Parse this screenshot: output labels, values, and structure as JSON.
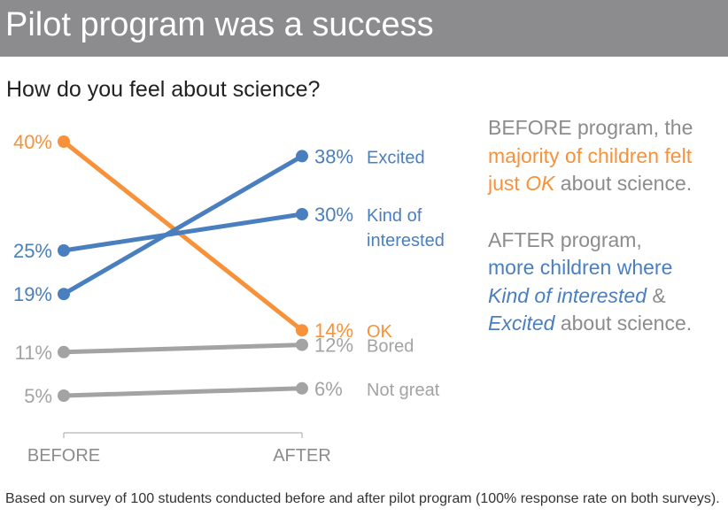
{
  "header": {
    "title": "Pilot program was a success"
  },
  "chart_data": {
    "type": "line",
    "title": "How do you feel about science?",
    "categories": [
      "BEFORE",
      "AFTER"
    ],
    "ylim": [
      0,
      45
    ],
    "value_suffix": "%",
    "series": [
      {
        "name": "Excited",
        "label_lines": [
          "Excited"
        ],
        "values": [
          19,
          38
        ],
        "color": "#4a7fbf"
      },
      {
        "name": "Kind of interested",
        "label_lines": [
          "Kind of",
          "interested"
        ],
        "values": [
          25,
          30
        ],
        "color": "#4a7fbf"
      },
      {
        "name": "OK",
        "label_lines": [
          "OK"
        ],
        "values": [
          40,
          14
        ],
        "color": "#f7923a"
      },
      {
        "name": "Bored",
        "label_lines": [
          "Bored"
        ],
        "values": [
          11,
          12
        ],
        "color": "#a3a3a3"
      },
      {
        "name": "Not great",
        "label_lines": [
          "Not great"
        ],
        "values": [
          5,
          6
        ],
        "color": "#a3a3a3"
      }
    ],
    "axis_color": "#a3a3a3",
    "tick_label_color": "#8c8c8f"
  },
  "annotations": {
    "before": {
      "line1": "BEFORE program, the",
      "highlight1": "majority of children felt",
      "highlight2_pre": "just ",
      "highlight2_em": "OK",
      "tail": " about science."
    },
    "after": {
      "line1": "AFTER program,",
      "highlight1": "more children where",
      "em1": "Kind of interested",
      "amp": " & ",
      "em2": "Excited",
      "tail": " about science."
    }
  },
  "footnote": "Based on survey of 100 students conducted before and after pilot program (100% response rate on both surveys)."
}
